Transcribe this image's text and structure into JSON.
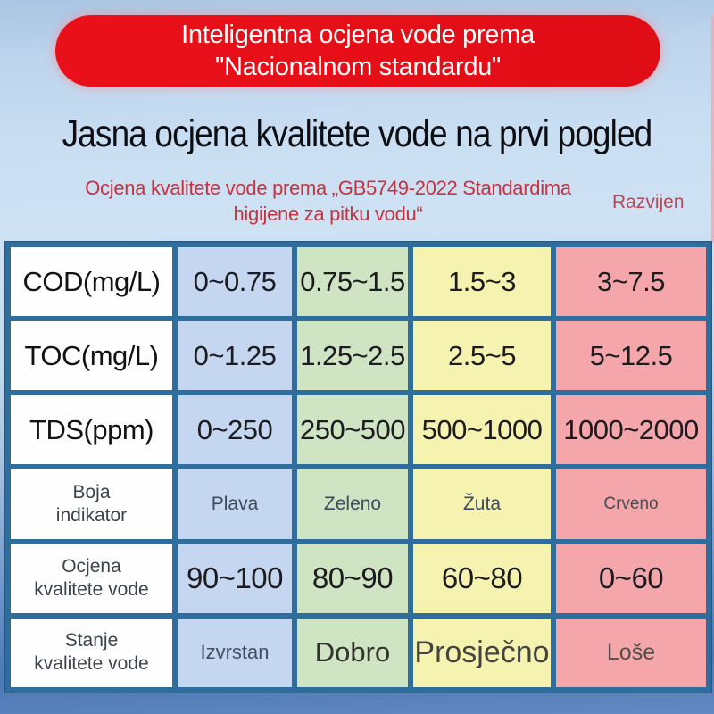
{
  "banner": {
    "line1": "Inteligentna ocjena vode prema",
    "line2": "\"Nacionalnom standardu\""
  },
  "heading": "Jasna ocjena kvalitete vode na prvi pogled",
  "subtitle": {
    "line1": "Ocjena kvalitete vode prema „GB5749-2022 Standardima",
    "line2": "higijene za pitku vodu“",
    "side_note": "Razvijen"
  },
  "table": {
    "rows": [
      {
        "label_line1": "COD(mg/L)",
        "label_line2": "",
        "values": [
          "0~0.75",
          "0.75~1.5",
          "1.5~3",
          "3~7.5"
        ]
      },
      {
        "label_line1": "TOC(mg/L)",
        "label_line2": "",
        "values": [
          "0~1.25",
          "1.25~2.5",
          "2.5~5",
          "5~12.5"
        ]
      },
      {
        "label_line1": "TDS(ppm)",
        "label_line2": "",
        "values": [
          "0~250",
          "250~500",
          "500~1000",
          "1000~2000"
        ]
      },
      {
        "label_line1": "Boja",
        "label_line2": "indikator",
        "values": [
          "Plava",
          "Zeleno",
          "Žuta",
          "Crveno"
        ]
      },
      {
        "label_line1": "Ocjena",
        "label_line2": "kvalitete vode",
        "values": [
          "90~100",
          "80~90",
          "60~80",
          "0~60"
        ]
      },
      {
        "label_line1": "Stanje",
        "label_line2": "kvalitete vode",
        "values": [
          "Izvrstan",
          "Dobro",
          "Prosječno",
          "Loše"
        ]
      }
    ]
  },
  "chart_data": {
    "type": "table",
    "title": "Jasna ocjena kvalitete vode na prvi pogled",
    "subtitle": "Ocjena kvalitete vode prema „GB5749-2022 Standardima higijene za pitku vodu“",
    "row_headers": [
      "COD(mg/L)",
      "TOC(mg/L)",
      "TDS(ppm)",
      "Boja indikator",
      "Ocjena kvalitete vode",
      "Stanje kvalitete vode"
    ],
    "rows": [
      [
        "0~0.75",
        "0.75~1.5",
        "1.5~3",
        "3~7.5"
      ],
      [
        "0~1.25",
        "1.25~2.5",
        "2.5~5",
        "5~12.5"
      ],
      [
        "0~250",
        "250~500",
        "500~1000",
        "1000~2000"
      ],
      [
        "Plava",
        "Zeleno",
        "Žuta",
        "Crveno"
      ],
      [
        "90~100",
        "80~90",
        "60~80",
        "0~60"
      ],
      [
        "Izvrstan",
        "Dobro",
        "Prosječno",
        "Loše"
      ]
    ],
    "column_colors": [
      "#c5d7f0",
      "#cfe4c3",
      "#f6f3b1",
      "#f5a6ab"
    ],
    "grid_color": "#2f6e9c"
  },
  "colors": {
    "banner_red": "#e8101b",
    "subtitle_red": "#c53340",
    "table_border": "#2f6e9c",
    "cell_blue": "#c5d7f0",
    "cell_green": "#cfe4c3",
    "cell_yellow": "#f6f3b1",
    "cell_red": "#f5a6ab"
  }
}
